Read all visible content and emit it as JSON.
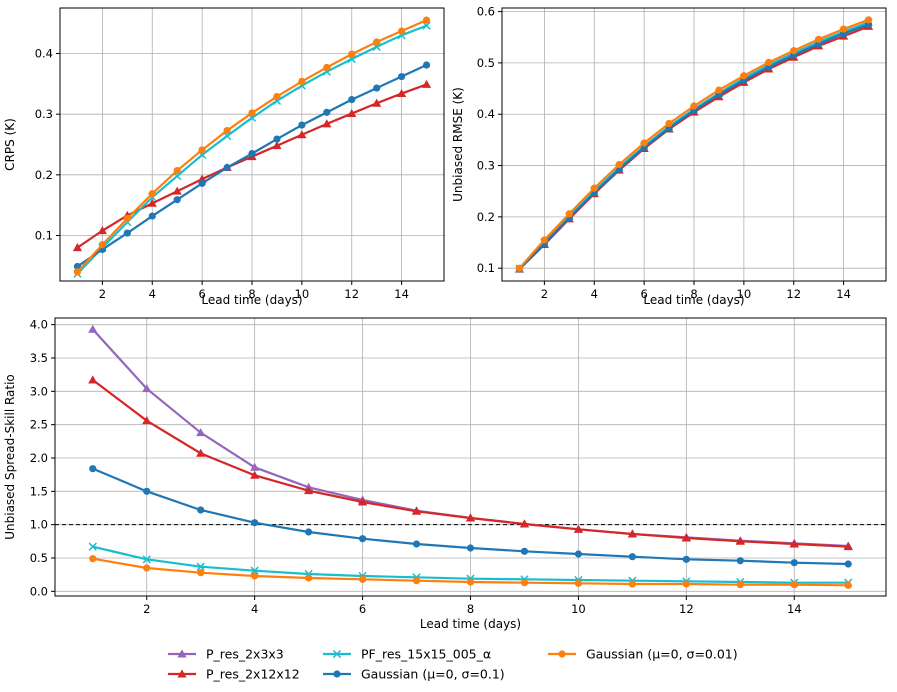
{
  "chart_data": [
    {
      "type": "line",
      "id": "crps",
      "xlabel": "Lead time (days)",
      "ylabel": "CRPS (K)",
      "xlim": [
        0.3,
        15.7
      ],
      "ylim": [
        0.025,
        0.475
      ],
      "xticks": [
        2,
        4,
        6,
        8,
        10,
        12,
        14
      ],
      "yticks": [
        0.1,
        0.2,
        0.3,
        0.4
      ],
      "ytick_labels": [
        "0.1",
        "0.2",
        "0.3",
        "0.4"
      ],
      "grid": true,
      "x": [
        1,
        2,
        3,
        4,
        5,
        6,
        7,
        8,
        9,
        10,
        11,
        12,
        13,
        14,
        15
      ],
      "series": [
        {
          "name": "P_res_2x12x12",
          "color": "#d62728",
          "marker": "triangle",
          "values": [
            0.08,
            0.108,
            0.133,
            0.153,
            0.173,
            0.193,
            0.212,
            0.23,
            0.248,
            0.266,
            0.284,
            0.301,
            0.318,
            0.334,
            0.349
          ]
        },
        {
          "name": "PF_res_15x15_005_α",
          "color": "#17becf",
          "marker": "x",
          "values": [
            0.037,
            0.08,
            0.122,
            0.163,
            0.198,
            0.233,
            0.264,
            0.294,
            0.322,
            0.347,
            0.37,
            0.391,
            0.411,
            0.43,
            0.446
          ]
        },
        {
          "name": "Gaussian (μ=0, σ=0.1)",
          "color": "#1f77b4",
          "marker": "circle",
          "values": [
            0.049,
            0.077,
            0.104,
            0.132,
            0.159,
            0.186,
            0.212,
            0.235,
            0.259,
            0.282,
            0.303,
            0.324,
            0.343,
            0.362,
            0.381
          ]
        },
        {
          "name": "Gaussian (μ=0, σ=0.01)",
          "color": "#ff7f0e",
          "marker": "circle",
          "values": [
            0.04,
            0.085,
            0.128,
            0.169,
            0.207,
            0.241,
            0.273,
            0.302,
            0.329,
            0.354,
            0.377,
            0.399,
            0.419,
            0.437,
            0.455
          ]
        }
      ]
    },
    {
      "type": "line",
      "id": "rmse",
      "xlabel": "Lead time (days)",
      "ylabel": "Unbiased RMSE (K)",
      "xlim": [
        0.3,
        15.7
      ],
      "ylim": [
        0.075,
        0.607
      ],
      "xticks": [
        2,
        4,
        6,
        8,
        10,
        12,
        14
      ],
      "yticks": [
        0.1,
        0.2,
        0.3,
        0.4,
        0.5,
        0.6
      ],
      "ytick_labels": [
        "0.1",
        "0.2",
        "0.3",
        "0.4",
        "0.5",
        "0.6"
      ],
      "grid": true,
      "x": [
        1,
        2,
        3,
        4,
        5,
        6,
        7,
        8,
        9,
        10,
        11,
        12,
        13,
        14,
        15
      ],
      "series": [
        {
          "name": "P_res_2x12x12",
          "color": "#d62728",
          "marker": "triangle",
          "values": [
            0.098,
            0.146,
            0.196,
            0.245,
            0.291,
            0.333,
            0.371,
            0.404,
            0.434,
            0.462,
            0.488,
            0.511,
            0.533,
            0.552,
            0.571
          ]
        },
        {
          "name": "PF_res_15x15_005_α",
          "color": "#17becf",
          "marker": "x",
          "values": [
            0.099,
            0.15,
            0.201,
            0.25,
            0.296,
            0.338,
            0.376,
            0.41,
            0.441,
            0.47,
            0.496,
            0.519,
            0.541,
            0.561,
            0.579
          ]
        },
        {
          "name": "Gaussian (μ=0, σ=0.1)",
          "color": "#1f77b4",
          "marker": "circle",
          "values": [
            0.099,
            0.148,
            0.198,
            0.247,
            0.293,
            0.335,
            0.373,
            0.407,
            0.438,
            0.466,
            0.492,
            0.515,
            0.537,
            0.557,
            0.575
          ]
        },
        {
          "name": "Gaussian (μ=0, σ=0.01)",
          "color": "#ff7f0e",
          "marker": "circle",
          "values": [
            0.1,
            0.155,
            0.206,
            0.256,
            0.302,
            0.344,
            0.382,
            0.416,
            0.447,
            0.475,
            0.501,
            0.524,
            0.546,
            0.566,
            0.584
          ]
        }
      ]
    },
    {
      "type": "line",
      "id": "ssr",
      "xlabel": "Lead time (days)",
      "ylabel": "Unbiased Spread-Skill Ratio",
      "xlim": [
        0.3,
        15.7
      ],
      "ylim": [
        -0.07,
        4.1
      ],
      "xticks": [
        2,
        4,
        6,
        8,
        10,
        12,
        14
      ],
      "yticks": [
        0.0,
        0.5,
        1.0,
        1.5,
        2.0,
        2.5,
        3.0,
        3.5,
        4.0
      ],
      "ytick_labels": [
        "0.0",
        "0.5",
        "1.0",
        "1.5",
        "2.0",
        "2.5",
        "3.0",
        "3.5",
        "4.0"
      ],
      "grid": true,
      "reference_line": 1.0,
      "x": [
        1,
        2,
        3,
        4,
        5,
        6,
        7,
        8,
        9,
        10,
        11,
        12,
        13,
        14,
        15
      ],
      "series": [
        {
          "name": "P_res_2x3x3",
          "color": "#9467bd",
          "marker": "triangle",
          "values": [
            3.93,
            3.04,
            2.38,
            1.86,
            1.56,
            1.37,
            1.21,
            1.1,
            1.01,
            0.93,
            0.86,
            0.81,
            0.76,
            0.72,
            0.68
          ]
        },
        {
          "name": "P_res_2x12x12",
          "color": "#d62728",
          "marker": "triangle",
          "values": [
            3.17,
            2.56,
            2.07,
            1.74,
            1.51,
            1.34,
            1.2,
            1.1,
            1.01,
            0.93,
            0.86,
            0.8,
            0.75,
            0.71,
            0.67
          ]
        },
        {
          "name": "Gaussian (μ=0, σ=0.1)",
          "color": "#1f77b4",
          "marker": "circle",
          "values": [
            1.84,
            1.5,
            1.22,
            1.03,
            0.89,
            0.79,
            0.71,
            0.65,
            0.6,
            0.56,
            0.52,
            0.48,
            0.46,
            0.43,
            0.41
          ]
        },
        {
          "name": "PF_res_15x15_005_α",
          "color": "#17becf",
          "marker": "x",
          "values": [
            0.67,
            0.48,
            0.37,
            0.31,
            0.26,
            0.23,
            0.21,
            0.19,
            0.18,
            0.17,
            0.16,
            0.15,
            0.14,
            0.13,
            0.13
          ]
        },
        {
          "name": "Gaussian (μ=0, σ=0.01)",
          "color": "#ff7f0e",
          "marker": "circle",
          "values": [
            0.49,
            0.35,
            0.28,
            0.23,
            0.2,
            0.18,
            0.16,
            0.14,
            0.13,
            0.12,
            0.11,
            0.11,
            0.1,
            0.1,
            0.09
          ]
        }
      ]
    }
  ],
  "legend": {
    "placement": "bottom-center",
    "entries": [
      {
        "label": "P_res_2x3x3",
        "color": "#9467bd",
        "marker": "triangle"
      },
      {
        "label": "P_res_2x12x12",
        "color": "#d62728",
        "marker": "triangle"
      },
      {
        "label": "PF_res_15x15_005_α",
        "color": "#17becf",
        "marker": "x"
      },
      {
        "label": "Gaussian   (μ=0, σ=0.1)",
        "color": "#1f77b4",
        "marker": "circle"
      },
      {
        "label": "Gaussian   (μ=0, σ=0.01)",
        "color": "#ff7f0e",
        "marker": "circle"
      }
    ]
  }
}
